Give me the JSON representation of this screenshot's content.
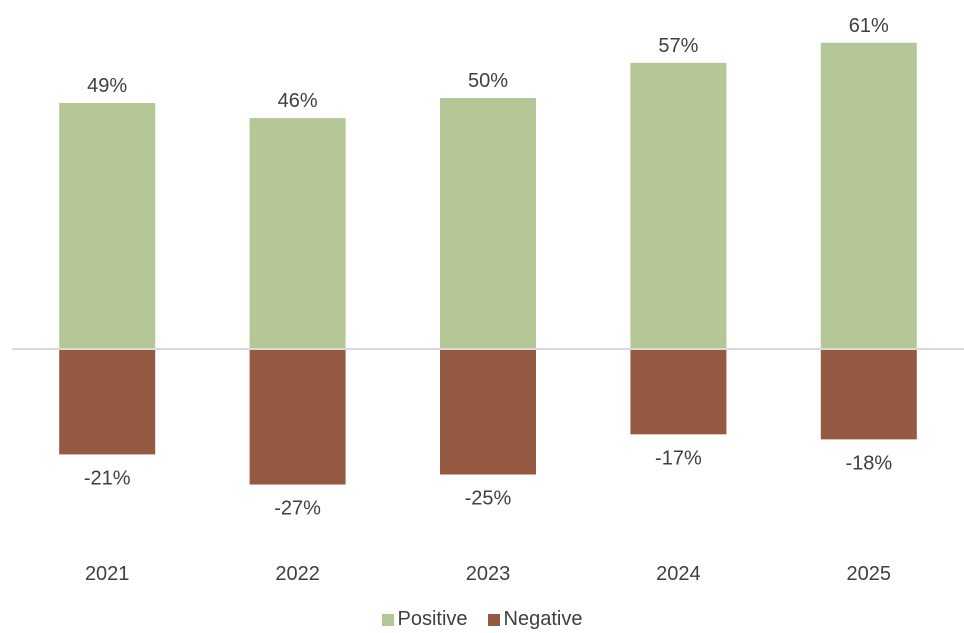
{
  "chart_data": {
    "type": "bar",
    "stacked": true,
    "categories": [
      "2021",
      "2022",
      "2023",
      "2024",
      "2025"
    ],
    "series": [
      {
        "name": "Positive",
        "values": [
          49,
          46,
          50,
          57,
          61
        ],
        "labels": [
          "49%",
          "46%",
          "50%",
          "57%",
          "61%"
        ],
        "color": "#b5c797"
      },
      {
        "name": "Negative",
        "values": [
          -21,
          -27,
          -25,
          -17,
          -18
        ],
        "labels": [
          "-21%",
          "-27%",
          "-25%",
          "-17%",
          "-18%"
        ],
        "color": "#955840"
      }
    ],
    "ylim": [
      -40,
      60
    ],
    "title": "",
    "xlabel": "",
    "ylabel": "",
    "grid": false,
    "legend": "bottom",
    "baseline_color": "#d9d9d9"
  }
}
